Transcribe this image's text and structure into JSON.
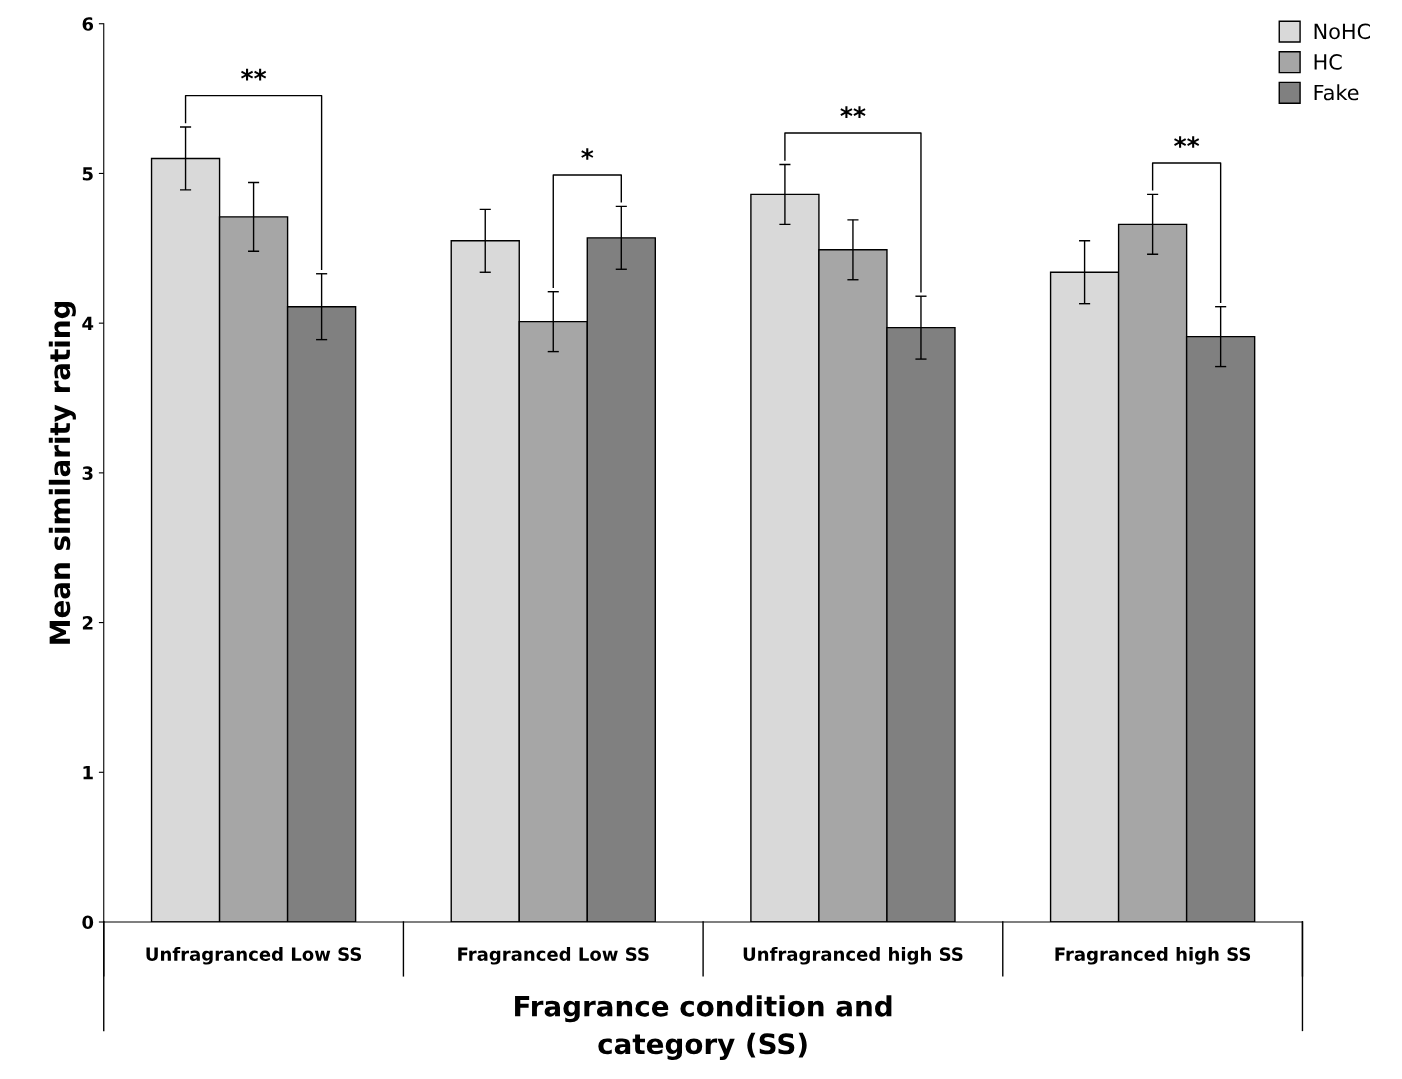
{
  "chart_data": {
    "type": "bar",
    "ylabel": "Mean similarity rating",
    "xlabel": "Fragrance condition and\ncategory (SS)",
    "categories": [
      "Unfragranced Low SS",
      "Fragranced Low SS",
      "Unfragranced high SS",
      "Fragranced high SS"
    ],
    "series": [
      {
        "name": "NoHC",
        "color": "#d9d9d9",
        "values": [
          5.1,
          4.55,
          4.86,
          4.34
        ],
        "errors": [
          0.21,
          0.21,
          0.2,
          0.21
        ]
      },
      {
        "name": "HC",
        "color": "#a6a6a6",
        "values": [
          4.71,
          4.01,
          4.49,
          4.66
        ],
        "errors": [
          0.23,
          0.2,
          0.2,
          0.2
        ]
      },
      {
        "name": "Fake",
        "color": "#808080",
        "values": [
          4.11,
          4.57,
          3.97,
          3.91
        ],
        "errors": [
          0.22,
          0.21,
          0.21,
          0.2
        ]
      }
    ],
    "ylim": [
      0,
      6
    ],
    "yticks": [
      0,
      1,
      2,
      3,
      4,
      5,
      6
    ],
    "grid": false,
    "legend": "top right",
    "annotations": [
      "**",
      "*",
      "**",
      "**"
    ]
  }
}
